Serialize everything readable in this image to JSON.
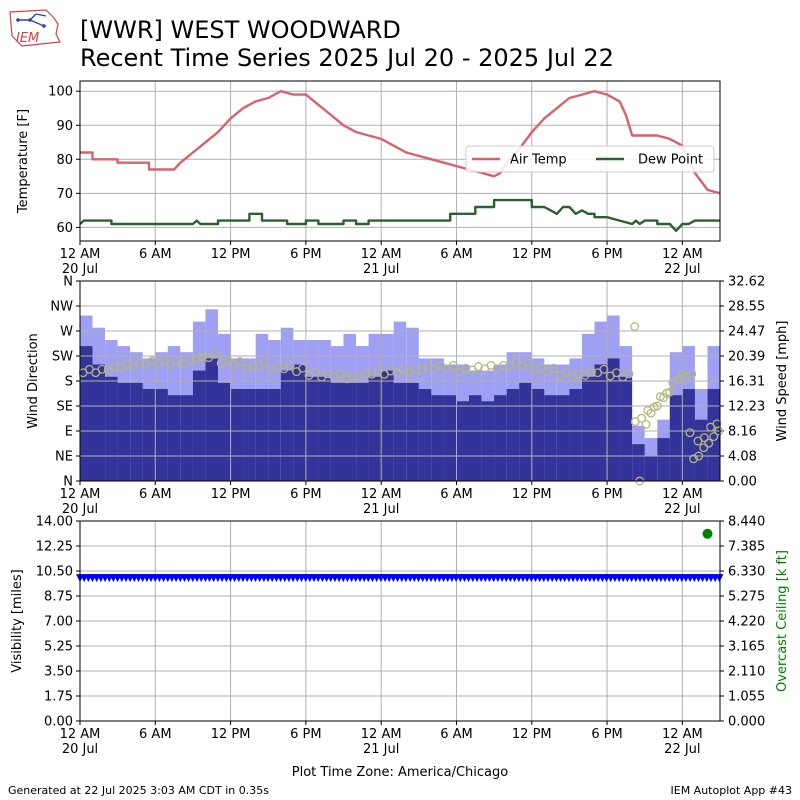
{
  "header": {
    "logo_text": "IEM",
    "title_line1": "[WWR] WEST WOODWARD",
    "title_line2": "Recent Time Series 2025 Jul 20 - 2025 Jul 22"
  },
  "footer": {
    "generated": "Generated at 22 Jul 2025 3:03 AM CDT in 0.35s",
    "app": "IEM Autoplot App #43",
    "xlabel": "Plot Time Zone: America/Chicago"
  },
  "colors": {
    "air_temp": "#d9626a",
    "dew_point": "#2e5f2e",
    "gust_bar": "#9f9ff3",
    "speed_bar": "#33339a",
    "direction_marker": "#b4b87a",
    "visibility": "#0000ff",
    "ceiling": "#008000",
    "grid": "#b0b0b0"
  },
  "x_axis": {
    "range_hours": [
      0,
      51
    ],
    "ticks": [
      {
        "h": 0,
        "label": "12 AM",
        "sub": "20 Jul"
      },
      {
        "h": 6,
        "label": "6 AM",
        "sub": ""
      },
      {
        "h": 12,
        "label": "12 PM",
        "sub": ""
      },
      {
        "h": 18,
        "label": "6 PM",
        "sub": ""
      },
      {
        "h": 24,
        "label": "12 AM",
        "sub": "21 Jul"
      },
      {
        "h": 30,
        "label": "6 AM",
        "sub": ""
      },
      {
        "h": 36,
        "label": "12 PM",
        "sub": ""
      },
      {
        "h": 42,
        "label": "6 PM",
        "sub": ""
      },
      {
        "h": 48,
        "label": "12 AM",
        "sub": "22 Jul"
      }
    ]
  },
  "chart_data": [
    {
      "type": "line",
      "ylabel": "Temperature [F]",
      "ylim": [
        56,
        103
      ],
      "yticks": [
        60,
        70,
        80,
        90,
        100
      ],
      "legend": {
        "placement": "right",
        "entries": [
          "Air Temp",
          "Dew Point"
        ]
      },
      "series": [
        {
          "name": "Air Temp",
          "points": [
            [
              0,
              82
            ],
            [
              1,
              82
            ],
            [
              1,
              80
            ],
            [
              3,
              80
            ],
            [
              3,
              79
            ],
            [
              5.5,
              79
            ],
            [
              5.5,
              77
            ],
            [
              7.5,
              77
            ],
            [
              8,
              79
            ],
            [
              9,
              82
            ],
            [
              10,
              85
            ],
            [
              11,
              88
            ],
            [
              12,
              92
            ],
            [
              13,
              95
            ],
            [
              14,
              97
            ],
            [
              15,
              98
            ],
            [
              16,
              100
            ],
            [
              17,
              99
            ],
            [
              18,
              99
            ],
            [
              19,
              96
            ],
            [
              20,
              93
            ],
            [
              21,
              90
            ],
            [
              22,
              88
            ],
            [
              23,
              87
            ],
            [
              24,
              86
            ],
            [
              25,
              84
            ],
            [
              26,
              82
            ],
            [
              27,
              81
            ],
            [
              28,
              80
            ],
            [
              29,
              79
            ],
            [
              30,
              78
            ],
            [
              31,
              77
            ],
            [
              32,
              76
            ],
            [
              33,
              75
            ],
            [
              33.5,
              76
            ],
            [
              34,
              79
            ],
            [
              35,
              83
            ],
            [
              36,
              88
            ],
            [
              37,
              92
            ],
            [
              38,
              95
            ],
            [
              39,
              98
            ],
            [
              40,
              99
            ],
            [
              41,
              100
            ],
            [
              42,
              99
            ],
            [
              43,
              97
            ],
            [
              43.5,
              93
            ],
            [
              44,
              87
            ],
            [
              46,
              87
            ],
            [
              47,
              86
            ],
            [
              48,
              84
            ],
            [
              48.5,
              80
            ],
            [
              49,
              76
            ],
            [
              50,
              71
            ],
            [
              51,
              70
            ]
          ]
        },
        {
          "name": "Dew Point",
          "points": [
            [
              0,
              61
            ],
            [
              0.3,
              62
            ],
            [
              2.5,
              62
            ],
            [
              2.5,
              61
            ],
            [
              9,
              61
            ],
            [
              9.3,
              62
            ],
            [
              9.6,
              61
            ],
            [
              11,
              61
            ],
            [
              11,
              62
            ],
            [
              13.5,
              62
            ],
            [
              13.5,
              64
            ],
            [
              14.5,
              64
            ],
            [
              14.5,
              62
            ],
            [
              16.5,
              62
            ],
            [
              16.5,
              61
            ],
            [
              18,
              61
            ],
            [
              18,
              62
            ],
            [
              19,
              62
            ],
            [
              19,
              61
            ],
            [
              21,
              61
            ],
            [
              21,
              62
            ],
            [
              22,
              62
            ],
            [
              22,
              61
            ],
            [
              23,
              61
            ],
            [
              23,
              62
            ],
            [
              29.5,
              62
            ],
            [
              29.5,
              64
            ],
            [
              31.5,
              64
            ],
            [
              31.5,
              66
            ],
            [
              33,
              66
            ],
            [
              33,
              68
            ],
            [
              36,
              68
            ],
            [
              36,
              66
            ],
            [
              37,
              66
            ],
            [
              38,
              64
            ],
            [
              38.5,
              66
            ],
            [
              39,
              66
            ],
            [
              39.5,
              64
            ],
            [
              40,
              65
            ],
            [
              40.5,
              64
            ],
            [
              41,
              64
            ],
            [
              41,
              63
            ],
            [
              42,
              63
            ],
            [
              43,
              62
            ],
            [
              44,
              61
            ],
            [
              44.3,
              62
            ],
            [
              44.6,
              61
            ],
            [
              45,
              62
            ],
            [
              46,
              62
            ],
            [
              46,
              61
            ],
            [
              47,
              61
            ],
            [
              47.5,
              59
            ],
            [
              48,
              61
            ],
            [
              48.5,
              61
            ],
            [
              49,
              62
            ],
            [
              51,
              62
            ]
          ]
        }
      ]
    },
    {
      "type": "bar",
      "ylabel": "Wind Direction",
      "y2label": "Wind Speed [mph]",
      "direction_ticks": [
        "N",
        "NE",
        "E",
        "SE",
        "S",
        "SW",
        "W",
        "NW",
        "N"
      ],
      "speed_ticks": [
        0.0,
        4.08,
        8.16,
        12.23,
        16.31,
        20.39,
        24.47,
        28.55,
        32.62
      ],
      "speed_ylim": [
        0,
        32.62
      ],
      "hourly": [
        {
          "h": 0,
          "speed": 22,
          "gust": 27,
          "dir": 198
        },
        {
          "h": 1,
          "speed": 19,
          "gust": 25,
          "dir": 198
        },
        {
          "h": 2,
          "speed": 17,
          "gust": 23,
          "dir": 203
        },
        {
          "h": 3,
          "speed": 16,
          "gust": 22,
          "dir": 207
        },
        {
          "h": 4,
          "speed": 16,
          "gust": 21,
          "dir": 210
        },
        {
          "h": 5,
          "speed": 15,
          "gust": 20,
          "dir": 213
        },
        {
          "h": 6,
          "speed": 15,
          "gust": 21,
          "dir": 215
        },
        {
          "h": 7,
          "speed": 14,
          "gust": 22,
          "dir": 212
        },
        {
          "h": 8,
          "speed": 14,
          "gust": 21,
          "dir": 215
        },
        {
          "h": 9,
          "speed": 18,
          "gust": 26,
          "dir": 220
        },
        {
          "h": 10,
          "speed": 20,
          "gust": 28,
          "dir": 225
        },
        {
          "h": 11,
          "speed": 16,
          "gust": 24,
          "dir": 215
        },
        {
          "h": 12,
          "speed": 15,
          "gust": 20,
          "dir": 212
        },
        {
          "h": 13,
          "speed": 15,
          "gust": 20,
          "dir": 205
        },
        {
          "h": 14,
          "speed": 15,
          "gust": 24,
          "dir": 210
        },
        {
          "h": 15,
          "speed": 15,
          "gust": 23,
          "dir": 203
        },
        {
          "h": 16,
          "speed": 18,
          "gust": 25,
          "dir": 205
        },
        {
          "h": 17,
          "speed": 19,
          "gust": 23,
          "dir": 200
        },
        {
          "h": 18,
          "speed": 17,
          "gust": 23,
          "dir": 193
        },
        {
          "h": 19,
          "speed": 17,
          "gust": 23,
          "dir": 190
        },
        {
          "h": 20,
          "speed": 16,
          "gust": 22,
          "dir": 190
        },
        {
          "h": 21,
          "speed": 16,
          "gust": 24,
          "dir": 187
        },
        {
          "h": 22,
          "speed": 16,
          "gust": 22,
          "dir": 190
        },
        {
          "h": 23,
          "speed": 17,
          "gust": 24,
          "dir": 195
        },
        {
          "h": 24,
          "speed": 18,
          "gust": 24,
          "dir": 195
        },
        {
          "h": 25,
          "speed": 16,
          "gust": 26,
          "dir": 198
        },
        {
          "h": 26,
          "speed": 16,
          "gust": 25,
          "dir": 198
        },
        {
          "h": 27,
          "speed": 15,
          "gust": 20,
          "dir": 203
        },
        {
          "h": 28,
          "speed": 14,
          "gust": 20,
          "dir": 205
        },
        {
          "h": 29,
          "speed": 14,
          "gust": 19,
          "dir": 205
        },
        {
          "h": 30,
          "speed": 13,
          "gust": 19,
          "dir": 200
        },
        {
          "h": 31,
          "speed": 14,
          "gust": 18,
          "dir": 203
        },
        {
          "h": 32,
          "speed": 13,
          "gust": 18,
          "dir": 205
        },
        {
          "h": 33,
          "speed": 14,
          "gust": 19,
          "dir": 205
        },
        {
          "h": 34,
          "speed": 15,
          "gust": 21,
          "dir": 210
        },
        {
          "h": 35,
          "speed": 16,
          "gust": 21,
          "dir": 210
        },
        {
          "h": 36,
          "speed": 15,
          "gust": 20,
          "dir": 202
        },
        {
          "h": 37,
          "speed": 14,
          "gust": 19,
          "dir": 200
        },
        {
          "h": 38,
          "speed": 14,
          "gust": 19,
          "dir": 192
        },
        {
          "h": 39,
          "speed": 15,
          "gust": 20,
          "dir": 190
        },
        {
          "h": 40,
          "speed": 17,
          "gust": 24,
          "dir": 193
        },
        {
          "h": 41,
          "speed": 19,
          "gust": 26,
          "dir": 198
        },
        {
          "h": 42,
          "speed": 20,
          "gust": 27,
          "dir": 192
        },
        {
          "h": 43,
          "speed": 17,
          "gust": 22,
          "dir": 190
        },
        {
          "h": 44,
          "speed": 6,
          "gust": 9,
          "dir": 110
        },
        {
          "h": 45,
          "speed": 4,
          "gust": 7,
          "dir": 130
        },
        {
          "h": 46,
          "speed": 7,
          "gust": 10,
          "dir": 155
        },
        {
          "h": 47,
          "speed": 14,
          "gust": 21,
          "dir": 180
        },
        {
          "h": 48,
          "speed": 15,
          "gust": 22,
          "dir": 190
        },
        {
          "h": 49,
          "speed": 10,
          "gust": 15,
          "dir": 75
        },
        {
          "h": 50,
          "speed": 15,
          "gust": 22,
          "dir": 100
        },
        {
          "h": 51,
          "speed": 13,
          "gust": 17,
          "dir": 112
        }
      ],
      "direction_points": [
        [
          44.2,
          278
        ],
        [
          44.6,
          0
        ],
        [
          45.1,
          102
        ],
        [
          45.5,
          122
        ],
        [
          46,
          135
        ],
        [
          46.5,
          150
        ],
        [
          47,
          160
        ],
        [
          48,
          192
        ],
        [
          48.6,
          87
        ],
        [
          48.9,
          40
        ],
        [
          49.3,
          45
        ],
        [
          49.7,
          60
        ],
        [
          50.1,
          68
        ],
        [
          50.5,
          80
        ],
        [
          50.9,
          90
        ]
      ]
    },
    {
      "type": "scatter",
      "ylabel": "Visibility [miles]",
      "y2label": "Overcast Ceiling [k ft]",
      "ylim": [
        0,
        14
      ],
      "yticks": [
        0.0,
        1.75,
        3.5,
        5.25,
        7.0,
        8.75,
        10.5,
        12.25,
        14.0
      ],
      "y2lim": [
        0,
        8.44
      ],
      "y2ticks": [
        0.0,
        1.055,
        2.11,
        3.165,
        4.22,
        5.275,
        6.33,
        7.385,
        8.44
      ],
      "visibility": {
        "value": 10,
        "from_h": 0,
        "to_h": 51
      },
      "ceiling_points": [
        [
          50,
          7.9
        ]
      ]
    }
  ]
}
